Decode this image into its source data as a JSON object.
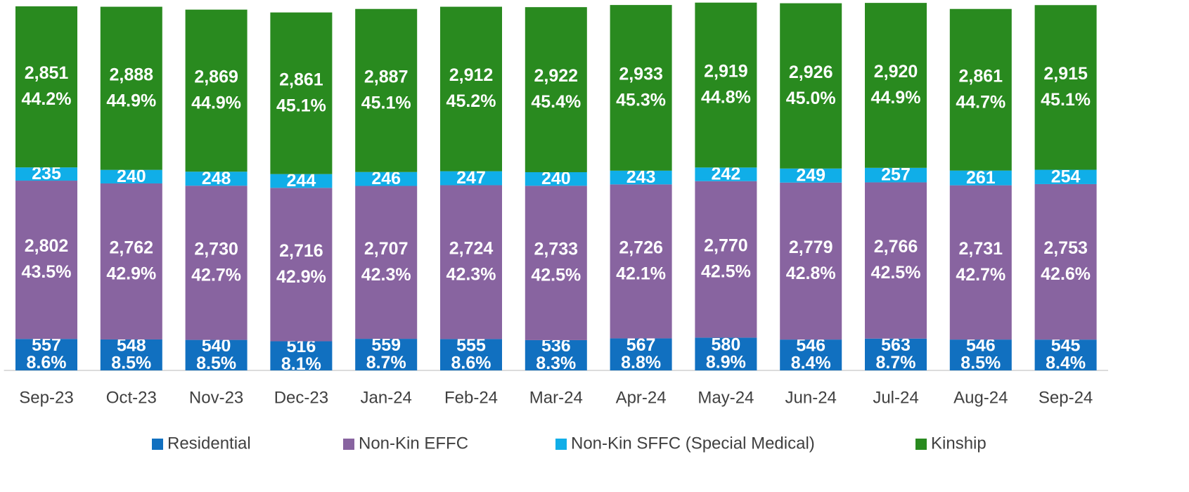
{
  "chart_data": {
    "type": "stacked-bar",
    "categories": [
      "Sep-23",
      "Oct-23",
      "Nov-23",
      "Dec-23",
      "Jan-24",
      "Feb-24",
      "Mar-24",
      "Apr-24",
      "May-24",
      "Jun-24",
      "Jul-24",
      "Aug-24",
      "Sep-24"
    ],
    "ylim": [
      0,
      6520
    ],
    "series": [
      {
        "name": "Residential",
        "color": "#1170c0",
        "values": [
          557,
          548,
          540,
          516,
          559,
          555,
          536,
          567,
          580,
          546,
          563,
          546,
          545
        ],
        "shares": [
          8.6,
          8.5,
          8.5,
          8.1,
          8.7,
          8.6,
          8.3,
          8.8,
          8.9,
          8.4,
          8.7,
          8.5,
          8.4
        ],
        "share_labels": [
          "8.6%",
          "8.5%",
          "8.5%",
          "8.1%",
          "8.7%",
          "8.6%",
          "8.3%",
          "8.8%",
          "8.9%",
          "8.4%",
          "8.7%",
          "8.5%",
          "8.4%"
        ]
      },
      {
        "name": "Non-Kin EFFC",
        "color": "#8864a0",
        "values": [
          2802,
          2762,
          2730,
          2716,
          2707,
          2724,
          2733,
          2726,
          2770,
          2779,
          2766,
          2731,
          2753
        ],
        "value_labels": [
          "2,802",
          "2,762",
          "2,730",
          "2,716",
          "2,707",
          "2,724",
          "2,733",
          "2,726",
          "2,770",
          "2,779",
          "2,766",
          "2,731",
          "2,753"
        ],
        "shares": [
          43.5,
          42.9,
          42.7,
          42.9,
          42.3,
          42.3,
          42.5,
          42.1,
          42.5,
          42.8,
          42.5,
          42.7,
          42.6
        ],
        "share_labels": [
          "43.5%",
          "42.9%",
          "42.7%",
          "42.9%",
          "42.3%",
          "42.3%",
          "42.5%",
          "42.1%",
          "42.5%",
          "42.8%",
          "42.5%",
          "42.7%",
          "42.6%"
        ]
      },
      {
        "name": "Non-Kin SFFC (Special Medical)",
        "color": "#10aee8",
        "values": [
          235,
          240,
          248,
          244,
          246,
          247,
          240,
          243,
          242,
          249,
          257,
          261,
          254
        ]
      },
      {
        "name": "Kinship",
        "color": "#298a1f",
        "values": [
          2851,
          2888,
          2869,
          2861,
          2887,
          2912,
          2922,
          2933,
          2919,
          2926,
          2920,
          2861,
          2915
        ],
        "value_labels": [
          "2,851",
          "2,888",
          "2,869",
          "2,861",
          "2,887",
          "2,912",
          "2,922",
          "2,933",
          "2,919",
          "2,926",
          "2,920",
          "2,861",
          "2,915"
        ],
        "shares": [
          44.2,
          44.9,
          44.9,
          45.1,
          45.1,
          45.2,
          45.4,
          45.3,
          44.8,
          45.0,
          44.9,
          44.7,
          45.1
        ],
        "share_labels": [
          "44.2%",
          "44.9%",
          "44.9%",
          "45.1%",
          "45.1%",
          "45.2%",
          "45.4%",
          "45.3%",
          "44.8%",
          "45.0%",
          "44.9%",
          "44.7%",
          "45.1%"
        ]
      }
    ]
  }
}
